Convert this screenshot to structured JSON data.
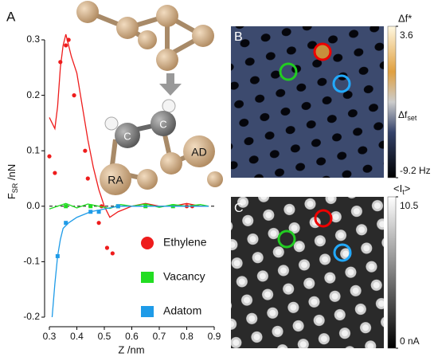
{
  "chart_data": {
    "type": "line",
    "panel_label": "A",
    "ylabel": [
      "F",
      "SR",
      " /nN"
    ],
    "xlabel": "Z /nm",
    "xlim": [
      0.3,
      0.9
    ],
    "xticks": [
      0.3,
      0.4,
      0.5,
      0.6,
      0.7,
      0.8,
      0.9
    ],
    "ylim": [
      -0.2,
      0.3
    ],
    "yticks": [
      -0.2,
      -0.1,
      {
        "value": 0,
        "label": "0.0"
      },
      0.1,
      0.2,
      0.3
    ],
    "series": [
      {
        "name": "Ethylene",
        "color": "#ee1c1c",
        "marker": "circle",
        "x": [
          0.3,
          0.32,
          0.34,
          0.36,
          0.37,
          0.39,
          0.43,
          0.44,
          0.48,
          0.49,
          0.51,
          0.53,
          0.8,
          0.82
        ],
        "values": [
          0.09,
          0.06,
          0.26,
          0.29,
          0.3,
          0.2,
          0.1,
          0.05,
          -0.03,
          0,
          -0.075,
          -0.085,
          0,
          0
        ],
        "curve_x": [
          0.3,
          0.31,
          0.32,
          0.33,
          0.34,
          0.35,
          0.36,
          0.37,
          0.38,
          0.4,
          0.42,
          0.44,
          0.46,
          0.48,
          0.5,
          0.52,
          0.55,
          0.6,
          0.65,
          0.7,
          0.75,
          0.8,
          0.85,
          0.88
        ],
        "curve_values": [
          0.16,
          0.15,
          0.14,
          0.18,
          0.25,
          0.29,
          0.31,
          0.29,
          0.27,
          0.24,
          0.18,
          0.12,
          0.07,
          0.03,
          0,
          -0.02,
          -0.01,
          0,
          0.005,
          0,
          0,
          0.005,
          0,
          0
        ]
      },
      {
        "name": "Vacancy",
        "color": "#22dd22",
        "marker": "square",
        "x": [
          0.36,
          0.45,
          0.55,
          0.65,
          0.75
        ],
        "values": [
          0,
          0,
          0,
          0,
          0
        ],
        "curve_x": [
          0.3,
          0.33,
          0.36,
          0.4,
          0.44,
          0.48,
          0.52,
          0.56,
          0.6,
          0.65,
          0.7,
          0.75,
          0.8,
          0.85,
          0.88
        ],
        "curve_values": [
          -0.005,
          0,
          0.005,
          -0.003,
          0.004,
          0,
          -0.004,
          0.003,
          0,
          0.004,
          -0.002,
          0.003,
          0,
          0.003,
          0
        ]
      },
      {
        "name": "Adatom",
        "color": "#1e9be8",
        "marker": "square",
        "x": [
          0.33,
          0.36,
          0.45,
          0.48,
          0.55
        ],
        "values": [
          -0.09,
          -0.03,
          -0.01,
          -0.01,
          0
        ],
        "curve_x": [
          0.31,
          0.32,
          0.33,
          0.34,
          0.35,
          0.37,
          0.4,
          0.45,
          0.5,
          0.55,
          0.6,
          0.7,
          0.8,
          0.88
        ],
        "curve_values": [
          -0.2,
          -0.14,
          -0.09,
          -0.06,
          -0.04,
          -0.03,
          -0.02,
          -0.01,
          -0.005,
          0,
          0,
          0,
          0,
          0
        ]
      }
    ]
  },
  "illustration": {
    "atoms": [
      "C",
      "C",
      "AD",
      "RA"
    ]
  },
  "images": [
    {
      "panel_label": "B",
      "colorbar_title": "Δf*",
      "colorbar_lim": [
        -9.2,
        3.6
      ],
      "colorbar_ticks": [
        {
          "value": 3.6,
          "label": "3.6"
        },
        {
          "value": -9.2,
          "label": "-9.2 Hz"
        }
      ],
      "set_label": [
        "Δf",
        "set"
      ]
    },
    {
      "panel_label": "C",
      "colorbar_title": "<I",
      "colorbar_title_sub": "t",
      "colorbar_title_end": ">",
      "colorbar_lim": [
        0,
        10.5
      ],
      "colorbar_ticks": [
        {
          "value": 10.5,
          "label": "10.5"
        },
        {
          "value": 0,
          "label": "0 nA"
        }
      ]
    }
  ]
}
